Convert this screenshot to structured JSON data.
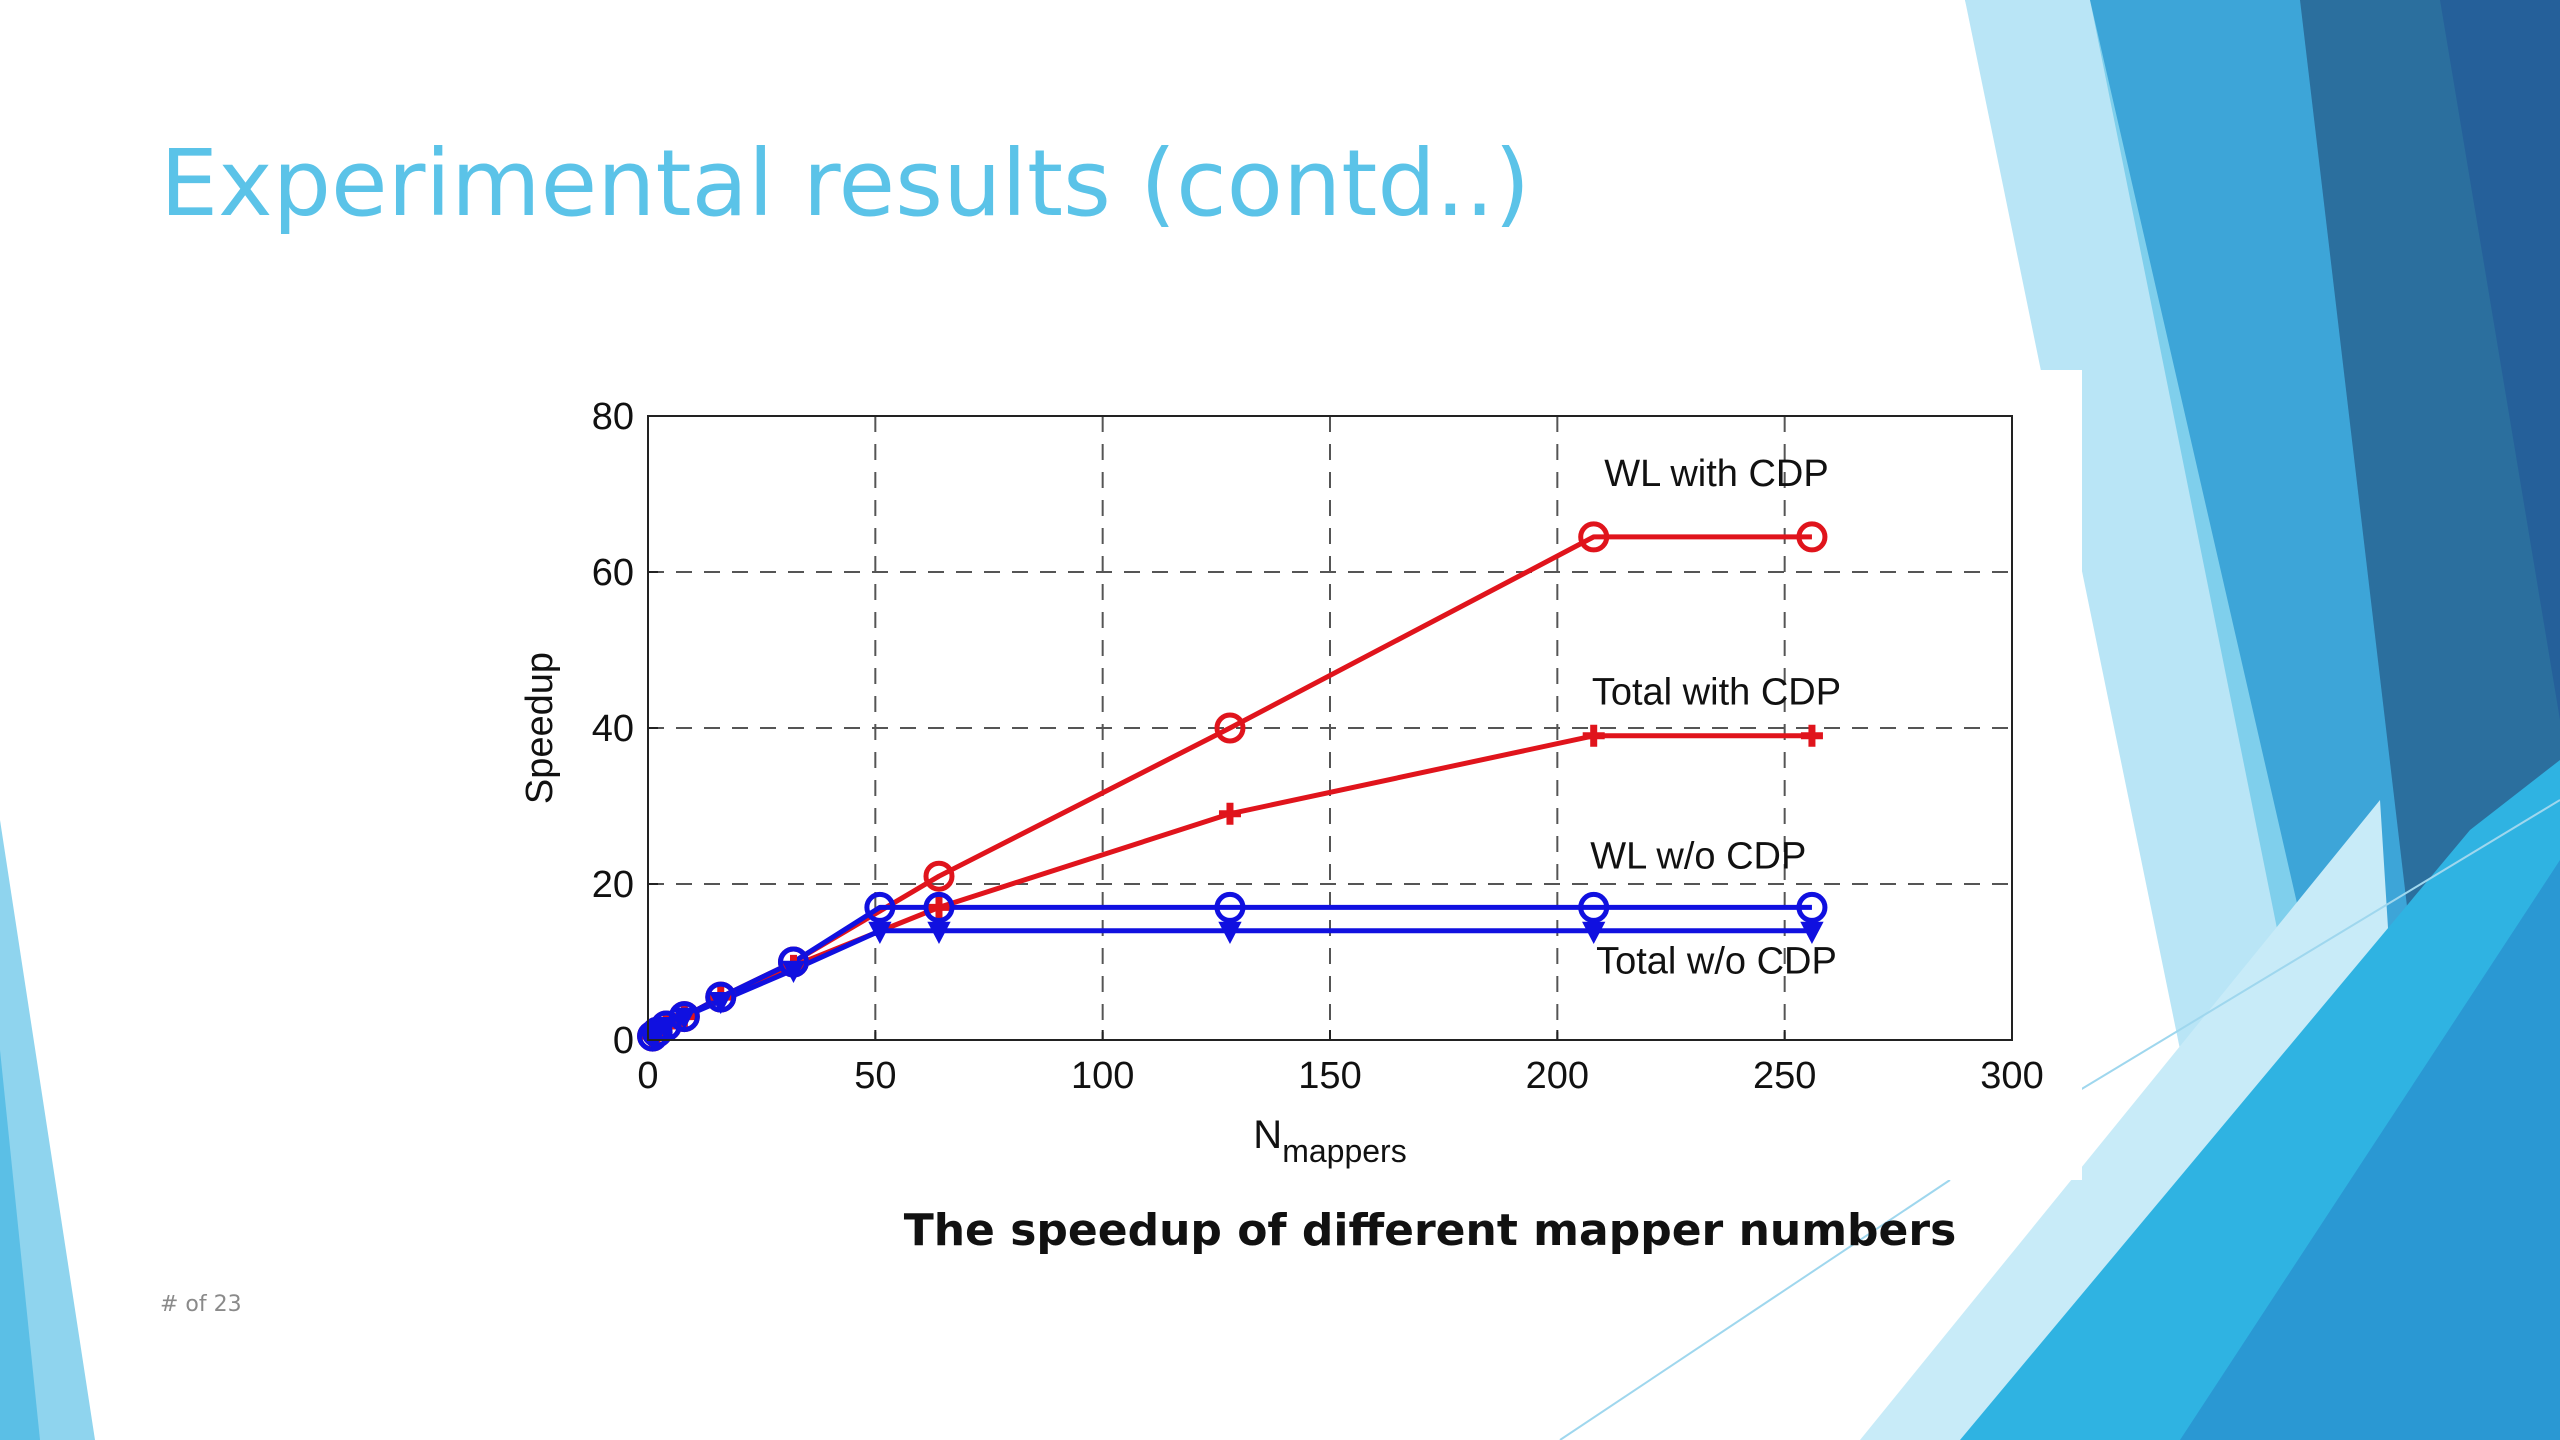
{
  "slide": {
    "title": "Experimental results (contd..)",
    "caption": "The speedup of different mapper numbers",
    "slide_number": "# of 23",
    "accent_color": "#5bc3e8"
  },
  "chart_data": {
    "type": "line",
    "title": "",
    "xlabel_main": "N",
    "xlabel_sub": "mappers",
    "ylabel": "Speedup",
    "xlim": [
      0,
      300
    ],
    "ylim": [
      0,
      80
    ],
    "xticks": [
      0,
      50,
      100,
      150,
      200,
      250,
      300
    ],
    "yticks": [
      0,
      20,
      40,
      60,
      80
    ],
    "grid": true,
    "series": [
      {
        "name": "WL with CDP",
        "color": "#e0141c",
        "marker": "circle",
        "x": [
          1,
          2,
          4,
          8,
          16,
          32,
          64,
          128,
          208,
          256
        ],
        "y": [
          0.5,
          1.0,
          1.8,
          3.0,
          5.5,
          10,
          21,
          40,
          64.5,
          64.5
        ]
      },
      {
        "name": "Total with CDP",
        "color": "#e0141c",
        "marker": "plus",
        "x": [
          1,
          2,
          4,
          8,
          16,
          32,
          64,
          128,
          208,
          256
        ],
        "y": [
          0.5,
          1.0,
          1.8,
          3.0,
          5.5,
          9.5,
          17,
          29,
          39,
          39
        ]
      },
      {
        "name": "WL w/o CDP",
        "color": "#1010e0",
        "marker": "circle",
        "x": [
          1,
          2,
          4,
          8,
          16,
          32,
          51,
          64,
          128,
          208,
          256
        ],
        "y": [
          0.5,
          1.0,
          1.8,
          3.0,
          5.5,
          10,
          17,
          17,
          17,
          17,
          17
        ]
      },
      {
        "name": "Total w/o CDP",
        "color": "#1010e0",
        "marker": "triangle",
        "x": [
          1,
          2,
          4,
          8,
          16,
          32,
          51,
          64,
          128,
          208,
          256
        ],
        "y": [
          0.5,
          1.0,
          1.8,
          3.0,
          5.0,
          9.0,
          14,
          14,
          14,
          14,
          14
        ]
      }
    ],
    "annotations": [
      {
        "text": "WL with CDP",
        "x": 235,
        "y": 71
      },
      {
        "text": "Total with CDP",
        "x": 235,
        "y": 43
      },
      {
        "text": "WL w/o CDP",
        "x": 231,
        "y": 22
      },
      {
        "text": "Total w/o CDP",
        "x": 235,
        "y": 8.5
      }
    ]
  }
}
